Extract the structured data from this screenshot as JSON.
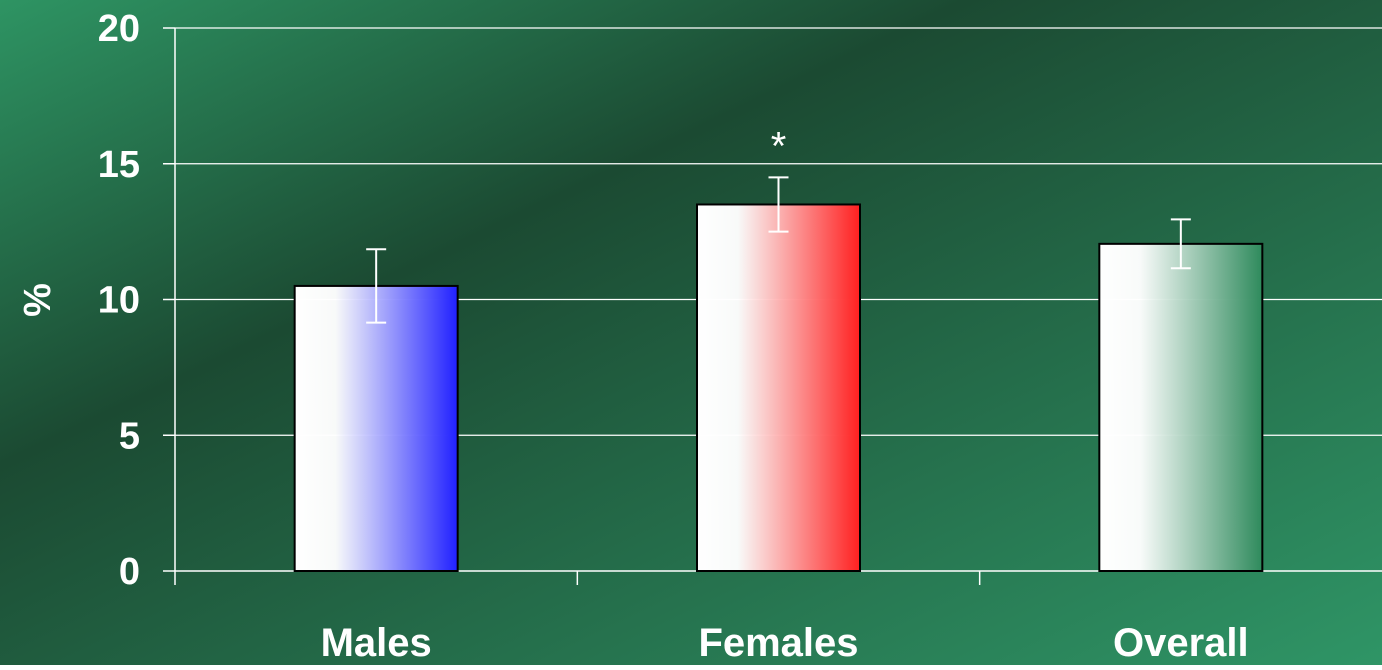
{
  "chart_data": {
    "type": "bar",
    "categories": [
      "Males",
      "Females",
      "Overall"
    ],
    "values": [
      10.5,
      13.5,
      12.05
    ],
    "error_bars": [
      1.35,
      1.0,
      0.9
    ],
    "annotations": [
      {
        "category": "Females",
        "text": "*"
      }
    ],
    "ylabel": "%",
    "xlabel": "",
    "title": "",
    "ylim": [
      0,
      20
    ],
    "yticks": [
      0,
      5,
      10,
      15,
      20
    ],
    "grid": true,
    "legend": "none",
    "bar_colors": [
      "#2020ff",
      "#ff2020",
      "#2e8a5c"
    ],
    "background_colors": [
      "#2e9463",
      "#1b4a32",
      "#2f9566"
    ]
  }
}
